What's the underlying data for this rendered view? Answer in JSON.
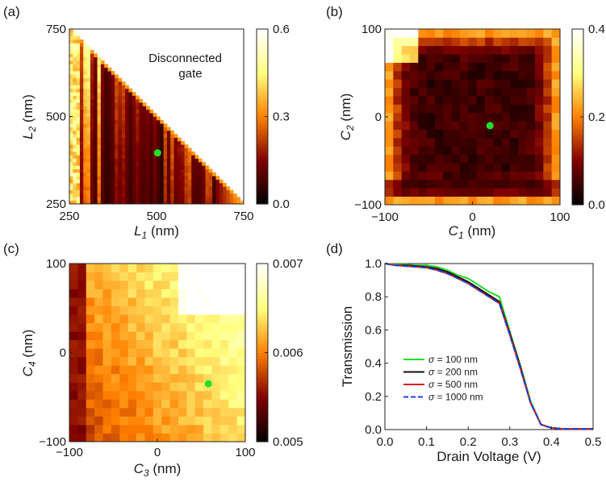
{
  "chart_data": [
    {
      "id": "a",
      "panel_label": "(a)",
      "type": "heatmap",
      "xlabel": {
        "main": "L",
        "sub": "1",
        "unit": " (nm)"
      },
      "ylabel": {
        "main": "L",
        "sub": "2",
        "unit": " (nm)"
      },
      "xlim": [
        250,
        750
      ],
      "ylim": [
        250,
        750
      ],
      "xticks": [
        "250",
        "500",
        "750"
      ],
      "yticks": [
        "250",
        "500",
        "750"
      ],
      "annotation_lines": [
        "Disconnected",
        "gate"
      ],
      "marker": {
        "x": 503,
        "y": 396,
        "color": "#22e02a"
      },
      "colorbar": {
        "min": 0.0,
        "max": 0.6,
        "ticks": [
          "0.0",
          "0.3",
          "0.6"
        ]
      },
      "grid": [
        50,
        50
      ],
      "note": "valid region L1 + L2 <= ~1000 nm; upper-right triangle is empty (disconnected gate)"
    },
    {
      "id": "b",
      "panel_label": "(b)",
      "type": "heatmap",
      "xlabel": {
        "main": "C",
        "sub": "1",
        "unit": " (nm)"
      },
      "ylabel": {
        "main": "C",
        "sub": "2",
        "unit": " (nm)"
      },
      "xlim": [
        -100,
        100
      ],
      "ylim": [
        -100,
        100
      ],
      "xticks": [
        "−100",
        "0",
        "100"
      ],
      "yticks": [
        "−100",
        "0",
        "100"
      ],
      "marker": {
        "x": 20,
        "y": -10,
        "color": "#22e02a"
      },
      "colorbar": {
        "min": 0.0,
        "max": 0.4,
        "ticks": [
          "0.0",
          "0.2",
          "0.4"
        ]
      },
      "grid": [
        21,
        21
      ]
    },
    {
      "id": "c",
      "panel_label": "(c)",
      "type": "heatmap",
      "xlabel": {
        "main": "C",
        "sub": "3",
        "unit": " (nm)"
      },
      "ylabel": {
        "main": "C",
        "sub": "4",
        "unit": " (nm)"
      },
      "xlim": [
        -100,
        100
      ],
      "ylim": [
        -100,
        100
      ],
      "xticks": [
        "−100",
        "0",
        "100"
      ],
      "yticks": [
        "−100",
        "0",
        "100"
      ],
      "marker": {
        "x": 58,
        "y": -35,
        "color": "#22e02a"
      },
      "colorbar": {
        "min": 0.005,
        "max": 0.007,
        "ticks": [
          "0.005",
          "0.006",
          "0.007"
        ]
      },
      "grid": [
        21,
        21
      ]
    },
    {
      "id": "d",
      "panel_label": "(d)",
      "type": "line",
      "xlabel": "Drain Voltage (V)",
      "ylabel": "Transmission",
      "xlim": [
        0,
        0.5
      ],
      "ylim": [
        0,
        1.0
      ],
      "xticks": [
        "0.0",
        "0.1",
        "0.2",
        "0.3",
        "0.4",
        "0.5"
      ],
      "yticks": [
        "0.0",
        "0.2",
        "0.4",
        "0.6",
        "0.8",
        "1.0"
      ],
      "x": [
        0.0,
        0.025,
        0.05,
        0.075,
        0.1,
        0.125,
        0.15,
        0.175,
        0.2,
        0.225,
        0.25,
        0.275,
        0.3,
        0.325,
        0.35,
        0.375,
        0.4,
        0.425,
        0.45,
        0.475,
        0.5
      ],
      "series": [
        {
          "name_prefix": "σ",
          "name_suffix": " = 100 nm",
          "color": "#22dd22",
          "dash": "",
          "values": [
            1.0,
            0.995,
            0.995,
            0.99,
            0.99,
            0.98,
            0.96,
            0.93,
            0.91,
            0.87,
            0.83,
            0.8,
            0.59,
            0.39,
            0.17,
            0.03,
            0.01,
            0.005,
            0.005,
            0.005,
            0.005
          ]
        },
        {
          "name_prefix": "σ",
          "name_suffix": " = 200 nm",
          "color": "#111111",
          "dash": "",
          "values": [
            1.0,
            0.99,
            0.99,
            0.985,
            0.98,
            0.97,
            0.95,
            0.92,
            0.89,
            0.85,
            0.81,
            0.77,
            0.58,
            0.38,
            0.16,
            0.03,
            0.01,
            0.005,
            0.005,
            0.005,
            0.005
          ]
        },
        {
          "name_prefix": "σ",
          "name_suffix": " = 500 nm",
          "color": "#e01b1b",
          "dash": "",
          "values": [
            1.0,
            0.99,
            0.985,
            0.98,
            0.975,
            0.96,
            0.94,
            0.91,
            0.88,
            0.84,
            0.8,
            0.76,
            0.57,
            0.37,
            0.16,
            0.03,
            0.01,
            0.005,
            0.005,
            0.005,
            0.005
          ]
        },
        {
          "name_prefix": "σ",
          "name_suffix": " = 1000 nm",
          "color": "#1c3ee0",
          "dash": "7,4",
          "values": [
            1.0,
            0.99,
            0.985,
            0.98,
            0.975,
            0.96,
            0.94,
            0.91,
            0.88,
            0.84,
            0.8,
            0.76,
            0.57,
            0.37,
            0.16,
            0.03,
            0.01,
            0.005,
            0.005,
            0.005,
            0.005
          ]
        }
      ],
      "legend": "lower-left"
    }
  ]
}
